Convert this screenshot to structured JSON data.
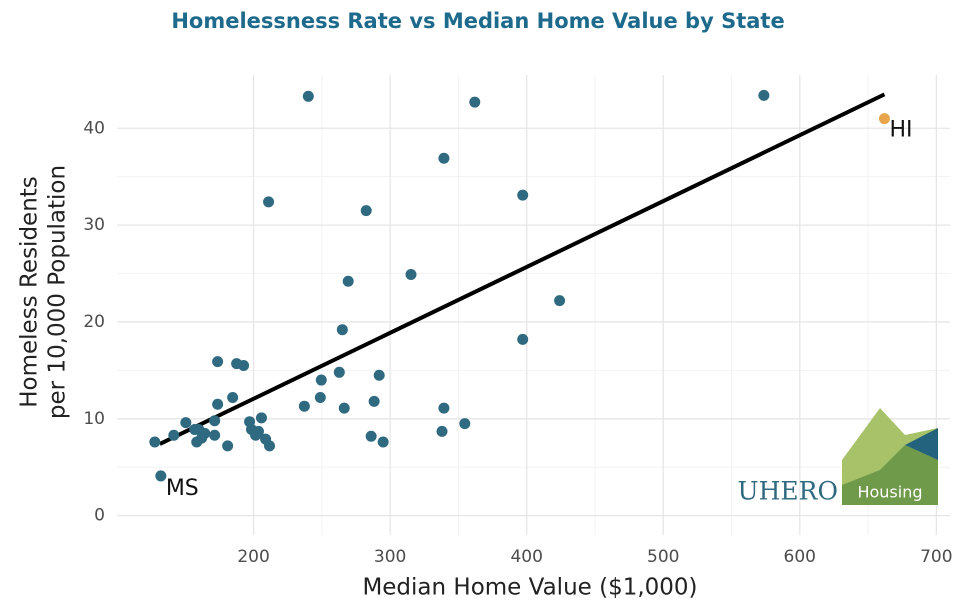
{
  "chart_data": {
    "type": "scatter",
    "title": "Homelessness Rate vs Median Home Value by State",
    "xlabel": "Median Home Value ($1,000)",
    "ylabel": [
      "Homeless Residents",
      "per 10,000 Population"
    ],
    "xlim": [
      100,
      710
    ],
    "ylim": [
      -2,
      45.5
    ],
    "xticks": [
      200,
      300,
      400,
      500,
      600,
      700
    ],
    "yticks": [
      0,
      10,
      20,
      30,
      40
    ],
    "grid": true,
    "series": [
      {
        "color": "#2f6a80",
        "x": [
          127.7,
          132.1,
          141.6,
          150.4,
          156.9,
          158.4,
          159.9,
          162,
          164.2,
          171.5,
          171.5,
          173.7,
          173.7,
          181,
          184.7,
          187.6,
          192.7,
          197.1,
          198.5,
          201.5,
          203.6,
          205.8,
          208.8,
          211.7,
          211,
          240.1,
          237.2,
          248.9,
          249.6,
          262.8,
          265,
          266.4,
          269.3,
          282.5,
          286.1,
          288.3,
          292,
          294.9,
          315.3,
          339.4,
          339.4,
          338,
          354.7,
          362,
          397.1,
          397.1,
          424.1,
          573.7
        ],
        "y": [
          7.6,
          4.1,
          8.3,
          9.6,
          8.9,
          7.6,
          8.9,
          8.0,
          8.5,
          8.3,
          9.8,
          11.5,
          15.9,
          7.2,
          12.2,
          15.7,
          15.5,
          9.7,
          8.9,
          8.3,
          8.7,
          10.1,
          7.9,
          7.2,
          32.4,
          43.3,
          11.3,
          12.2,
          14.0,
          14.8,
          19.2,
          11.1,
          24.2,
          31.5,
          8.2,
          11.8,
          14.5,
          7.6,
          24.9,
          36.9,
          11.1,
          8.7,
          9.5,
          42.7,
          33.1,
          18.2,
          22.2,
          43.4
        ],
        "labels": [
          null,
          "MS",
          null,
          null,
          null,
          null,
          null,
          null,
          null,
          null,
          null,
          null,
          null,
          null,
          null,
          null,
          null,
          null,
          null,
          null,
          null,
          null,
          null,
          null,
          null,
          null,
          null,
          null,
          null,
          null,
          null,
          null,
          null,
          null,
          null,
          null,
          null,
          null,
          null,
          null,
          null,
          null,
          null,
          null,
          null,
          null,
          null,
          null
        ]
      },
      {
        "name": "HI",
        "color": "#e8a54b",
        "x": [
          662
        ],
        "y": [
          41.0
        ]
      }
    ],
    "trend": {
      "color": "#000000",
      "x": [
        131.4,
        662
      ],
      "y": [
        7.4,
        43.5
      ]
    },
    "logo": {
      "text": "UHERO",
      "badge": "Housing"
    }
  }
}
